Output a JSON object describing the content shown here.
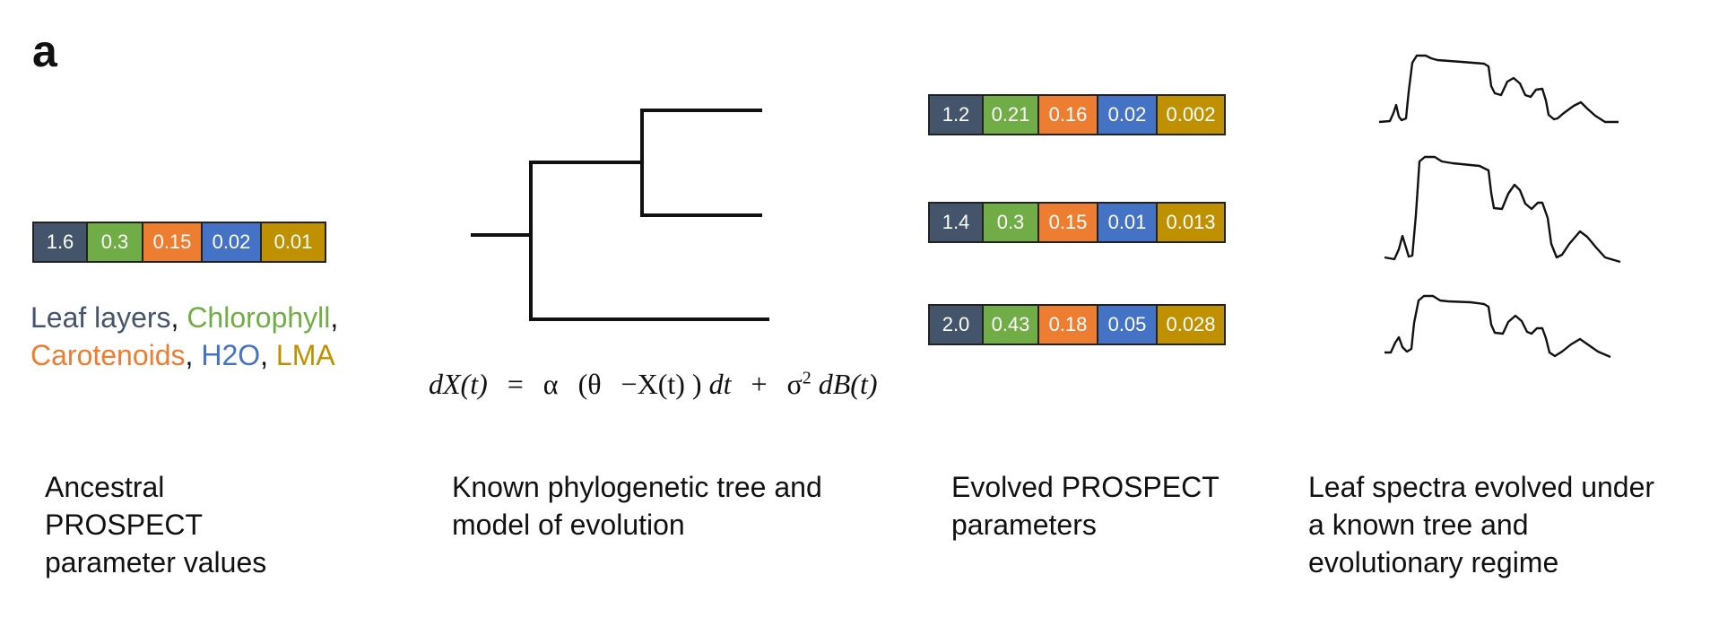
{
  "panel_label": "a",
  "colors": {
    "leaf_layers": "#44546a",
    "chlorophyll": "#70ad47",
    "carotenoids": "#ed7d31",
    "h2o": "#4472c4",
    "lma": "#bf9000"
  },
  "ancestral_values": [
    "1.6",
    "0.3",
    "0.15",
    "0.02",
    "0.01"
  ],
  "evolved_values": [
    [
      "1.2",
      "0.21",
      "0.16",
      "0.02",
      "0.002"
    ],
    [
      "1.4",
      "0.3",
      "0.15",
      "0.01",
      "0.013"
    ],
    [
      "2.0",
      "0.43",
      "0.18",
      "0.05",
      "0.028"
    ]
  ],
  "legend": {
    "leaf_layers": "Leaf layers",
    "chlorophyll": "Chlorophyll",
    "carotenoids": "Carotenoids",
    "h2o": "H2O",
    "lma": "LMA",
    "sep": ","
  },
  "equation": {
    "lhs": "dX(t)",
    "eq": "=",
    "alpha": "α",
    "open": "(θ",
    "minus": "−X(t) )",
    "dt": "dt",
    "plus": "+",
    "sigma": "σ",
    "sup": "2",
    "dB": "dB(t)"
  },
  "captions": {
    "ancestral": [
      "Ancestral",
      "PROSPECT",
      "parameter values"
    ],
    "tree": [
      "Known phylogenetic tree and",
      "model of evolution"
    ],
    "evolved": [
      "Evolved PROSPECT",
      "parameters"
    ],
    "spectra": [
      "Leaf spectra evolved under",
      "a known tree and",
      "evolutionary regime"
    ]
  }
}
